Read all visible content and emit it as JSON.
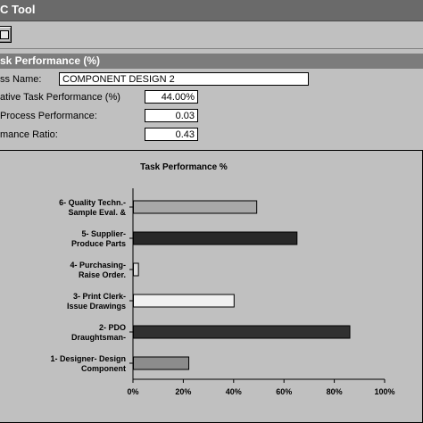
{
  "window": {
    "title": "C Tool"
  },
  "panel": {
    "title": "sk Performance (%)"
  },
  "form": {
    "process_name_label": "ss Name:",
    "process_name_value": "COMPONENT DESIGN 2",
    "relative_task_label": "ative Task Performance (%)",
    "relative_task_value": "44.00%",
    "process_performance_label": "Process Performance:",
    "process_performance_value": "0.03",
    "performance_ratio_label": "mance Ratio:",
    "performance_ratio_value": "0.43"
  },
  "chart_data": {
    "type": "bar",
    "orientation": "horizontal",
    "title": "Task Performance %",
    "categories": [
      [
        "6- Quality Techn.-",
        "Sample Eval. &"
      ],
      [
        "5- Supplier-",
        "Produce Parts"
      ],
      [
        "4- Purchasing-",
        "Raise Order."
      ],
      [
        "3- Print Clerk-",
        "Issue Drawings"
      ],
      [
        "2- PDO",
        "Draughtsman-"
      ],
      [
        "1- Designer- Design",
        "Component"
      ]
    ],
    "values": [
      49,
      65,
      2,
      40,
      86,
      22
    ],
    "bar_colors": [
      "#a8a8a8",
      "#282828",
      "#dcdcdc",
      "#f0f0f0",
      "#303030",
      "#8c8c8c"
    ],
    "xlim": [
      0,
      100
    ],
    "xticks": [
      "0%",
      "20%",
      "40%",
      "60%",
      "80%",
      "100%"
    ],
    "grid": false
  }
}
